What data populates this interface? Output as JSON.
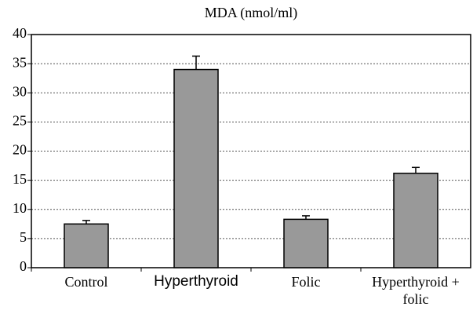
{
  "chart_data": {
    "type": "bar",
    "title": "MDA (nmol/ml)",
    "categories": [
      "Control",
      "Hyperthyroid",
      "Folic",
      "Hyperthyroid + folic"
    ],
    "values": [
      7.5,
      34,
      8.3,
      16.2
    ],
    "errors": [
      0.6,
      2.3,
      0.6,
      1.0
    ],
    "color": "#999999",
    "ylim": [
      0,
      40
    ],
    "yticks": [
      0,
      5,
      10,
      15,
      20,
      25,
      30,
      35,
      40
    ],
    "grid": true
  }
}
